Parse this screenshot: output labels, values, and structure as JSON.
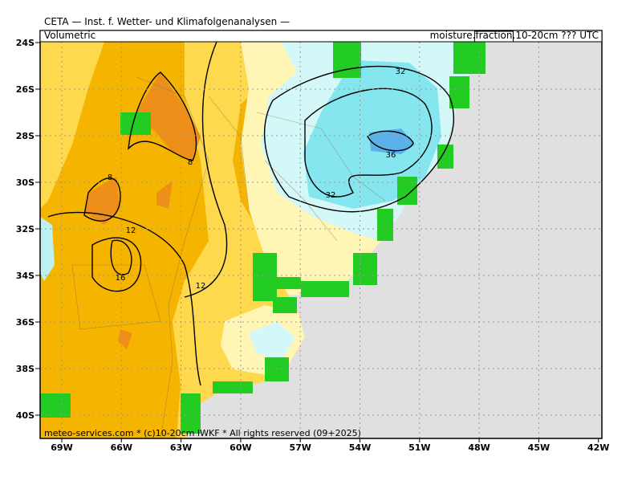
{
  "header": {
    "title": "CETA — Inst. f. Wetter- und Klimafolgenanalysen —",
    "subtitle_left": "Volumetric",
    "subtitle_right": [
      "moisture.",
      "fraction",
      ".10-20cm ??? UTC"
    ]
  },
  "axes": {
    "lat_labels": [
      "24S",
      "26S",
      "28S",
      "30S",
      "32S",
      "34S",
      "36S",
      "38S",
      "40S"
    ],
    "lon_labels": [
      "69W",
      "66W",
      "63W",
      "60W",
      "57W",
      "54W",
      "51W",
      "48W",
      "45W",
      "42W"
    ]
  },
  "contour_labels": [
    "32",
    "36",
    "32",
    "8",
    "8",
    "12",
    "16",
    "12"
  ],
  "footer": "meteo-services.com * (c)10-20cm IWKF * All rights reserved (09+2025)"
}
